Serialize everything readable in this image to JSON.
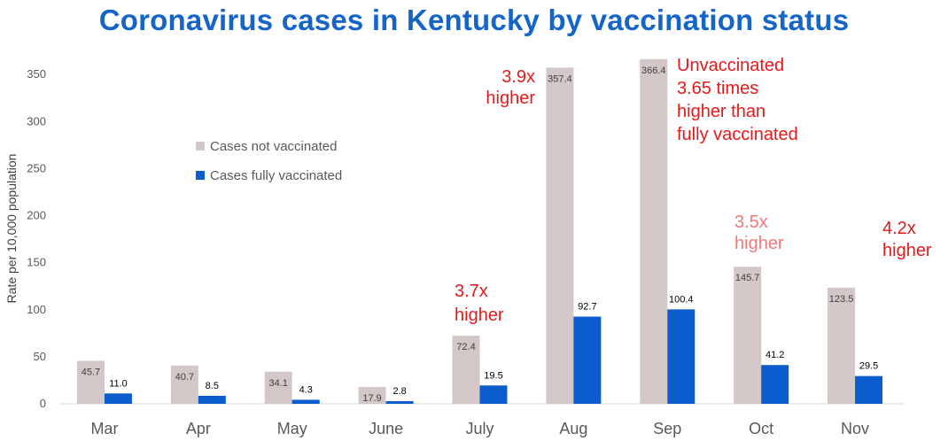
{
  "chart_data": {
    "type": "bar",
    "title": "Coronavirus cases in Kentucky by vaccination status",
    "xlabel": "",
    "ylabel": "Rate per 10,000 population",
    "ylim": [
      0,
      370
    ],
    "yticks": [
      0,
      50,
      100,
      150,
      200,
      250,
      300,
      350
    ],
    "grid": false,
    "legend_position": "upper-left",
    "categories": [
      "Mar",
      "Apr",
      "May",
      "June",
      "July",
      "Aug",
      "Sep",
      "Oct",
      "Nov"
    ],
    "series": [
      {
        "name": "Cases not vaccinated",
        "color": "#d3c7c7",
        "values": [
          45.7,
          40.7,
          34.1,
          17.9,
          72.4,
          357.4,
          366.4,
          145.7,
          123.5
        ],
        "labels": [
          "45.7",
          "40.7",
          "34.1",
          "17.9",
          "72.4",
          "357.4",
          "366.4",
          "145.7",
          "123.5"
        ]
      },
      {
        "name": "Cases fully vaccinated",
        "color": "#0b5ccc",
        "values": [
          11.0,
          8.5,
          4.3,
          2.8,
          19.5,
          92.7,
          100.4,
          41.2,
          29.5
        ],
        "labels": [
          "11.0",
          "8.5",
          "4.3",
          "2.8",
          "19.5",
          "92.7",
          "100.4",
          "41.2",
          "29.5"
        ]
      }
    ],
    "annotations": [
      {
        "category": "July",
        "lines": [
          "3.7x",
          "higher"
        ],
        "color": "#e31a1c"
      },
      {
        "category": "Aug",
        "lines": [
          "3.9x",
          "higher"
        ],
        "color": "#e31a1c"
      },
      {
        "category": "Sep",
        "lines": [
          "Unvaccinated",
          "3.65 times",
          "higher than",
          "fully vaccinated"
        ],
        "color": "#e31a1c"
      },
      {
        "category": "Oct",
        "lines": [
          "3.5x",
          "higher"
        ],
        "color": "#f07878"
      },
      {
        "category": "Nov",
        "lines": [
          "4.2x",
          "higher"
        ],
        "color": "#e31a1c"
      }
    ],
    "colors": {
      "title": "#1565c8",
      "axis_text": "#595959",
      "value_label_dark": "#404040",
      "value_label_blue": "#000000"
    }
  }
}
